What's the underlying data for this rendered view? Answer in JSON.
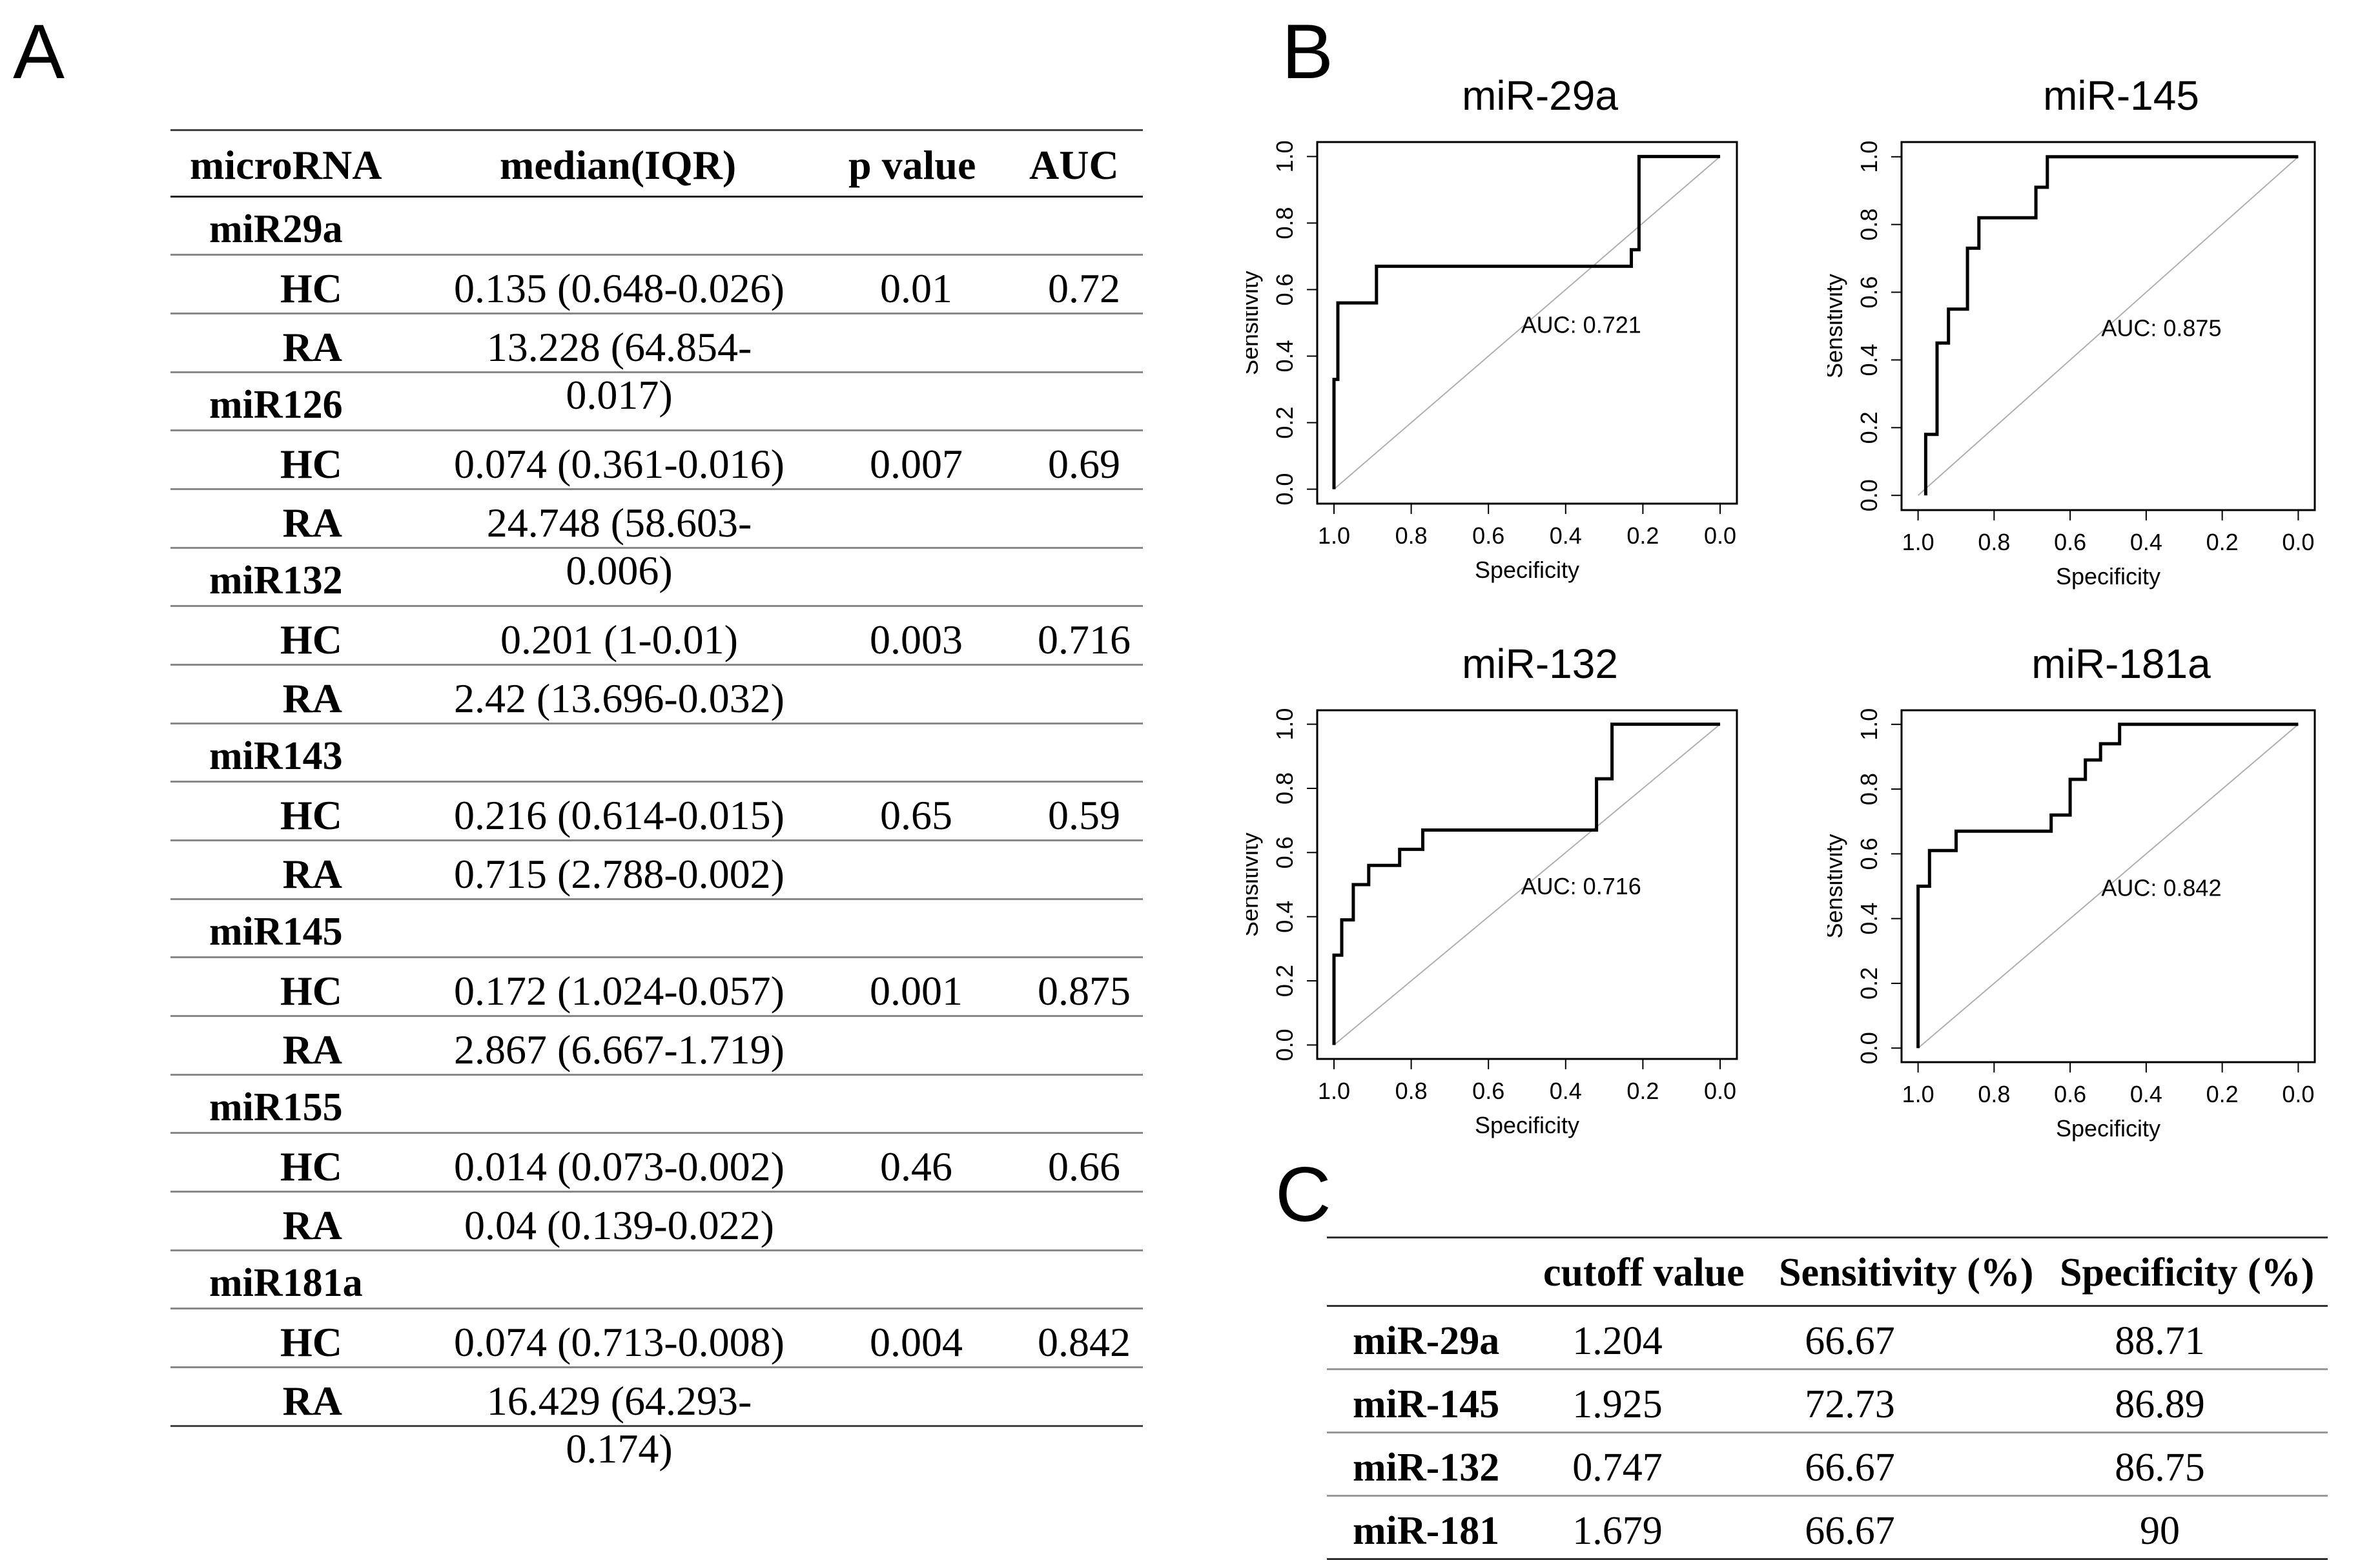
{
  "panels": {
    "a": "A",
    "b": "B",
    "c": "C"
  },
  "table_a": {
    "headers": {
      "microrna": "microRNA",
      "median": "median(IQR)",
      "p": "p value",
      "auc": "AUC"
    },
    "groups": [
      {
        "name": "miR29a",
        "hc_label": "HC",
        "ra_label": "RA",
        "hc_median": "0.135 (0.648-0.026)",
        "ra_median": "13.228 (64.854-0.017)",
        "p": "0.01",
        "auc": "0.72"
      },
      {
        "name": "miR126",
        "hc_label": "HC",
        "ra_label": "RA",
        "hc_median": "0.074 (0.361-0.016)",
        "ra_median": "24.748 (58.603-0.006)",
        "p": "0.007",
        "auc": "0.69"
      },
      {
        "name": "miR132",
        "hc_label": "HC",
        "ra_label": "RA",
        "hc_median": "0.201 (1-0.01)",
        "ra_median": "2.42 (13.696-0.032)",
        "p": "0.003",
        "auc": "0.716"
      },
      {
        "name": "miR143",
        "hc_label": "HC",
        "ra_label": "RA",
        "hc_median": "0.216 (0.614-0.015)",
        "ra_median": "0.715 (2.788-0.002)",
        "p": "0.65",
        "auc": "0.59"
      },
      {
        "name": "miR145",
        "hc_label": "HC",
        "ra_label": "RA",
        "hc_median": "0.172 (1.024-0.057)",
        "ra_median": "2.867 (6.667-1.719)",
        "p": "0.001",
        "auc": "0.875"
      },
      {
        "name": "miR155",
        "hc_label": "HC",
        "ra_label": "RA",
        "hc_median": "0.014 (0.073-0.002)",
        "ra_median": "0.04 (0.139-0.022)",
        "p": "0.46",
        "auc": "0.66"
      },
      {
        "name": "miR181a",
        "hc_label": "HC",
        "ra_label": "RA",
        "hc_median": "0.074 (0.713-0.008)",
        "ra_median": "16.429 (64.293-0.174)",
        "p": "0.004",
        "auc": "0.842"
      }
    ]
  },
  "chart_data": [
    {
      "type": "line",
      "title": "miR-29a",
      "xlabel": "Specificity",
      "ylabel": "Sensitivity",
      "xlim": [
        1.0,
        0.0
      ],
      "ylim": [
        0.0,
        1.0
      ],
      "xticks": [
        "1.0",
        "0.8",
        "0.6",
        "0.4",
        "0.2",
        "0.0"
      ],
      "yticks": [
        "0.0",
        "0.2",
        "0.4",
        "0.6",
        "0.8",
        "1.0"
      ],
      "annotation": "AUC: 0.721",
      "series": [
        {
          "name": "ROC",
          "x": [
            1.0,
            1.0,
            0.99,
            0.99,
            0.89,
            0.89,
            0.23,
            0.23,
            0.21,
            0.21,
            0.0
          ],
          "y": [
            0.0,
            0.33,
            0.33,
            0.56,
            0.56,
            0.67,
            0.67,
            0.72,
            0.72,
            1.0,
            1.0
          ]
        }
      ]
    },
    {
      "type": "line",
      "title": "miR-145",
      "xlabel": "Specificity",
      "ylabel": "Sensitivity",
      "xlim": [
        1.0,
        0.0
      ],
      "ylim": [
        0.0,
        1.0
      ],
      "xticks": [
        "1.0",
        "0.8",
        "0.6",
        "0.4",
        "0.2",
        "0.0"
      ],
      "yticks": [
        "0.0",
        "0.2",
        "0.4",
        "0.6",
        "0.8",
        "1.0"
      ],
      "annotation": "AUC: 0.875",
      "series": [
        {
          "name": "ROC",
          "x": [
            0.98,
            0.98,
            0.95,
            0.95,
            0.92,
            0.92,
            0.87,
            0.87,
            0.84,
            0.84,
            0.69,
            0.69,
            0.66,
            0.66,
            0.0
          ],
          "y": [
            0.0,
            0.18,
            0.18,
            0.45,
            0.45,
            0.55,
            0.55,
            0.73,
            0.73,
            0.82,
            0.82,
            0.91,
            0.91,
            1.0,
            1.0
          ]
        }
      ]
    },
    {
      "type": "line",
      "title": "miR-132",
      "xlabel": "Specificity",
      "ylabel": "Sensitivity",
      "xlim": [
        1.0,
        0.0
      ],
      "ylim": [
        0.0,
        1.0
      ],
      "xticks": [
        "1.0",
        "0.8",
        "0.6",
        "0.4",
        "0.2",
        "0.0"
      ],
      "yticks": [
        "0.0",
        "0.2",
        "0.4",
        "0.6",
        "0.8",
        "1.0"
      ],
      "annotation": "AUC: 0.716",
      "series": [
        {
          "name": "ROC",
          "x": [
            1.0,
            1.0,
            0.98,
            0.98,
            0.95,
            0.95,
            0.91,
            0.91,
            0.83,
            0.83,
            0.77,
            0.77,
            0.69,
            0.69,
            0.32,
            0.32,
            0.28,
            0.28,
            0.0
          ],
          "y": [
            0.0,
            0.28,
            0.28,
            0.39,
            0.39,
            0.5,
            0.5,
            0.56,
            0.56,
            0.61,
            0.61,
            0.67,
            0.67,
            0.67,
            0.67,
            0.83,
            0.83,
            1.0,
            1.0
          ]
        }
      ]
    },
    {
      "type": "line",
      "title": "miR-181a",
      "xlabel": "Specificity",
      "ylabel": "Sensitivity",
      "xlim": [
        1.0,
        0.0
      ],
      "ylim": [
        0.0,
        1.0
      ],
      "xticks": [
        "1.0",
        "0.8",
        "0.6",
        "0.4",
        "0.2",
        "0.0"
      ],
      "yticks": [
        "0.0",
        "0.2",
        "0.4",
        "0.6",
        "0.8",
        "1.0"
      ],
      "annotation": "AUC: 0.842",
      "series": [
        {
          "name": "ROC",
          "x": [
            1.0,
            1.0,
            0.97,
            0.97,
            0.9,
            0.9,
            0.65,
            0.65,
            0.6,
            0.6,
            0.56,
            0.56,
            0.52,
            0.52,
            0.47,
            0.47,
            0.0
          ],
          "y": [
            0.0,
            0.5,
            0.5,
            0.61,
            0.61,
            0.67,
            0.67,
            0.72,
            0.72,
            0.83,
            0.83,
            0.89,
            0.89,
            0.94,
            0.94,
            1.0,
            1.0
          ]
        }
      ]
    }
  ],
  "table_c": {
    "headers": {
      "cutoff": "cutoff value",
      "sensitivity": "Sensitivity (%)",
      "specificity": "Specificity (%)"
    },
    "rows": [
      {
        "name": "miR-29a",
        "cutoff": "1.204",
        "sensitivity": "66.67",
        "specificity": "88.71"
      },
      {
        "name": "miR-145",
        "cutoff": "1.925",
        "sensitivity": "72.73",
        "specificity": "86.89"
      },
      {
        "name": "miR-132",
        "cutoff": "0.747",
        "sensitivity": "66.67",
        "specificity": "86.75"
      },
      {
        "name": "miR-181",
        "cutoff": "1.679",
        "sensitivity": "66.67",
        "specificity": "90"
      }
    ]
  }
}
